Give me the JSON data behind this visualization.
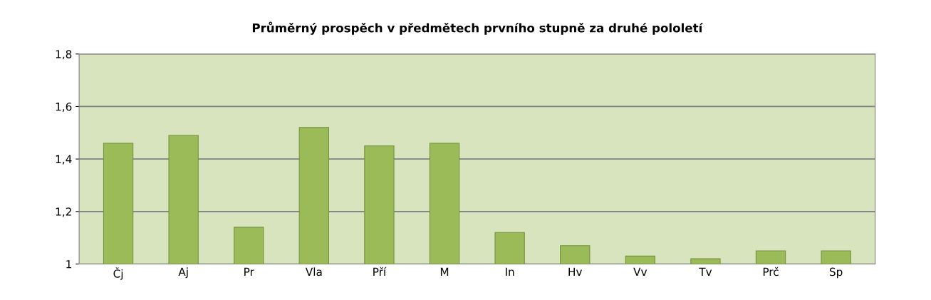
{
  "chart_data": {
    "type": "bar",
    "title": "Průměrný prospěch v předmětech prvního stupně za druhé pololetí",
    "categories": [
      "Čj",
      "Aj",
      "Pr",
      "Vla",
      "Pří",
      "M",
      "In",
      "Hv",
      "Vv",
      "Tv",
      "Prč",
      "Sp"
    ],
    "values": [
      1.46,
      1.49,
      1.14,
      1.52,
      1.45,
      1.46,
      1.12,
      1.07,
      1.03,
      1.02,
      1.05,
      1.05
    ],
    "color": "#9bbb59",
    "ylim": [
      1,
      1.8
    ],
    "yticks": [
      1,
      {
        "value": 1.2,
        "label": "1,2"
      },
      {
        "value": 1.4,
        "label": "1,4"
      },
      {
        "value": 1.6,
        "label": "1,6"
      },
      {
        "value": 1.8,
        "label": "1,8"
      }
    ],
    "grid": "y"
  }
}
